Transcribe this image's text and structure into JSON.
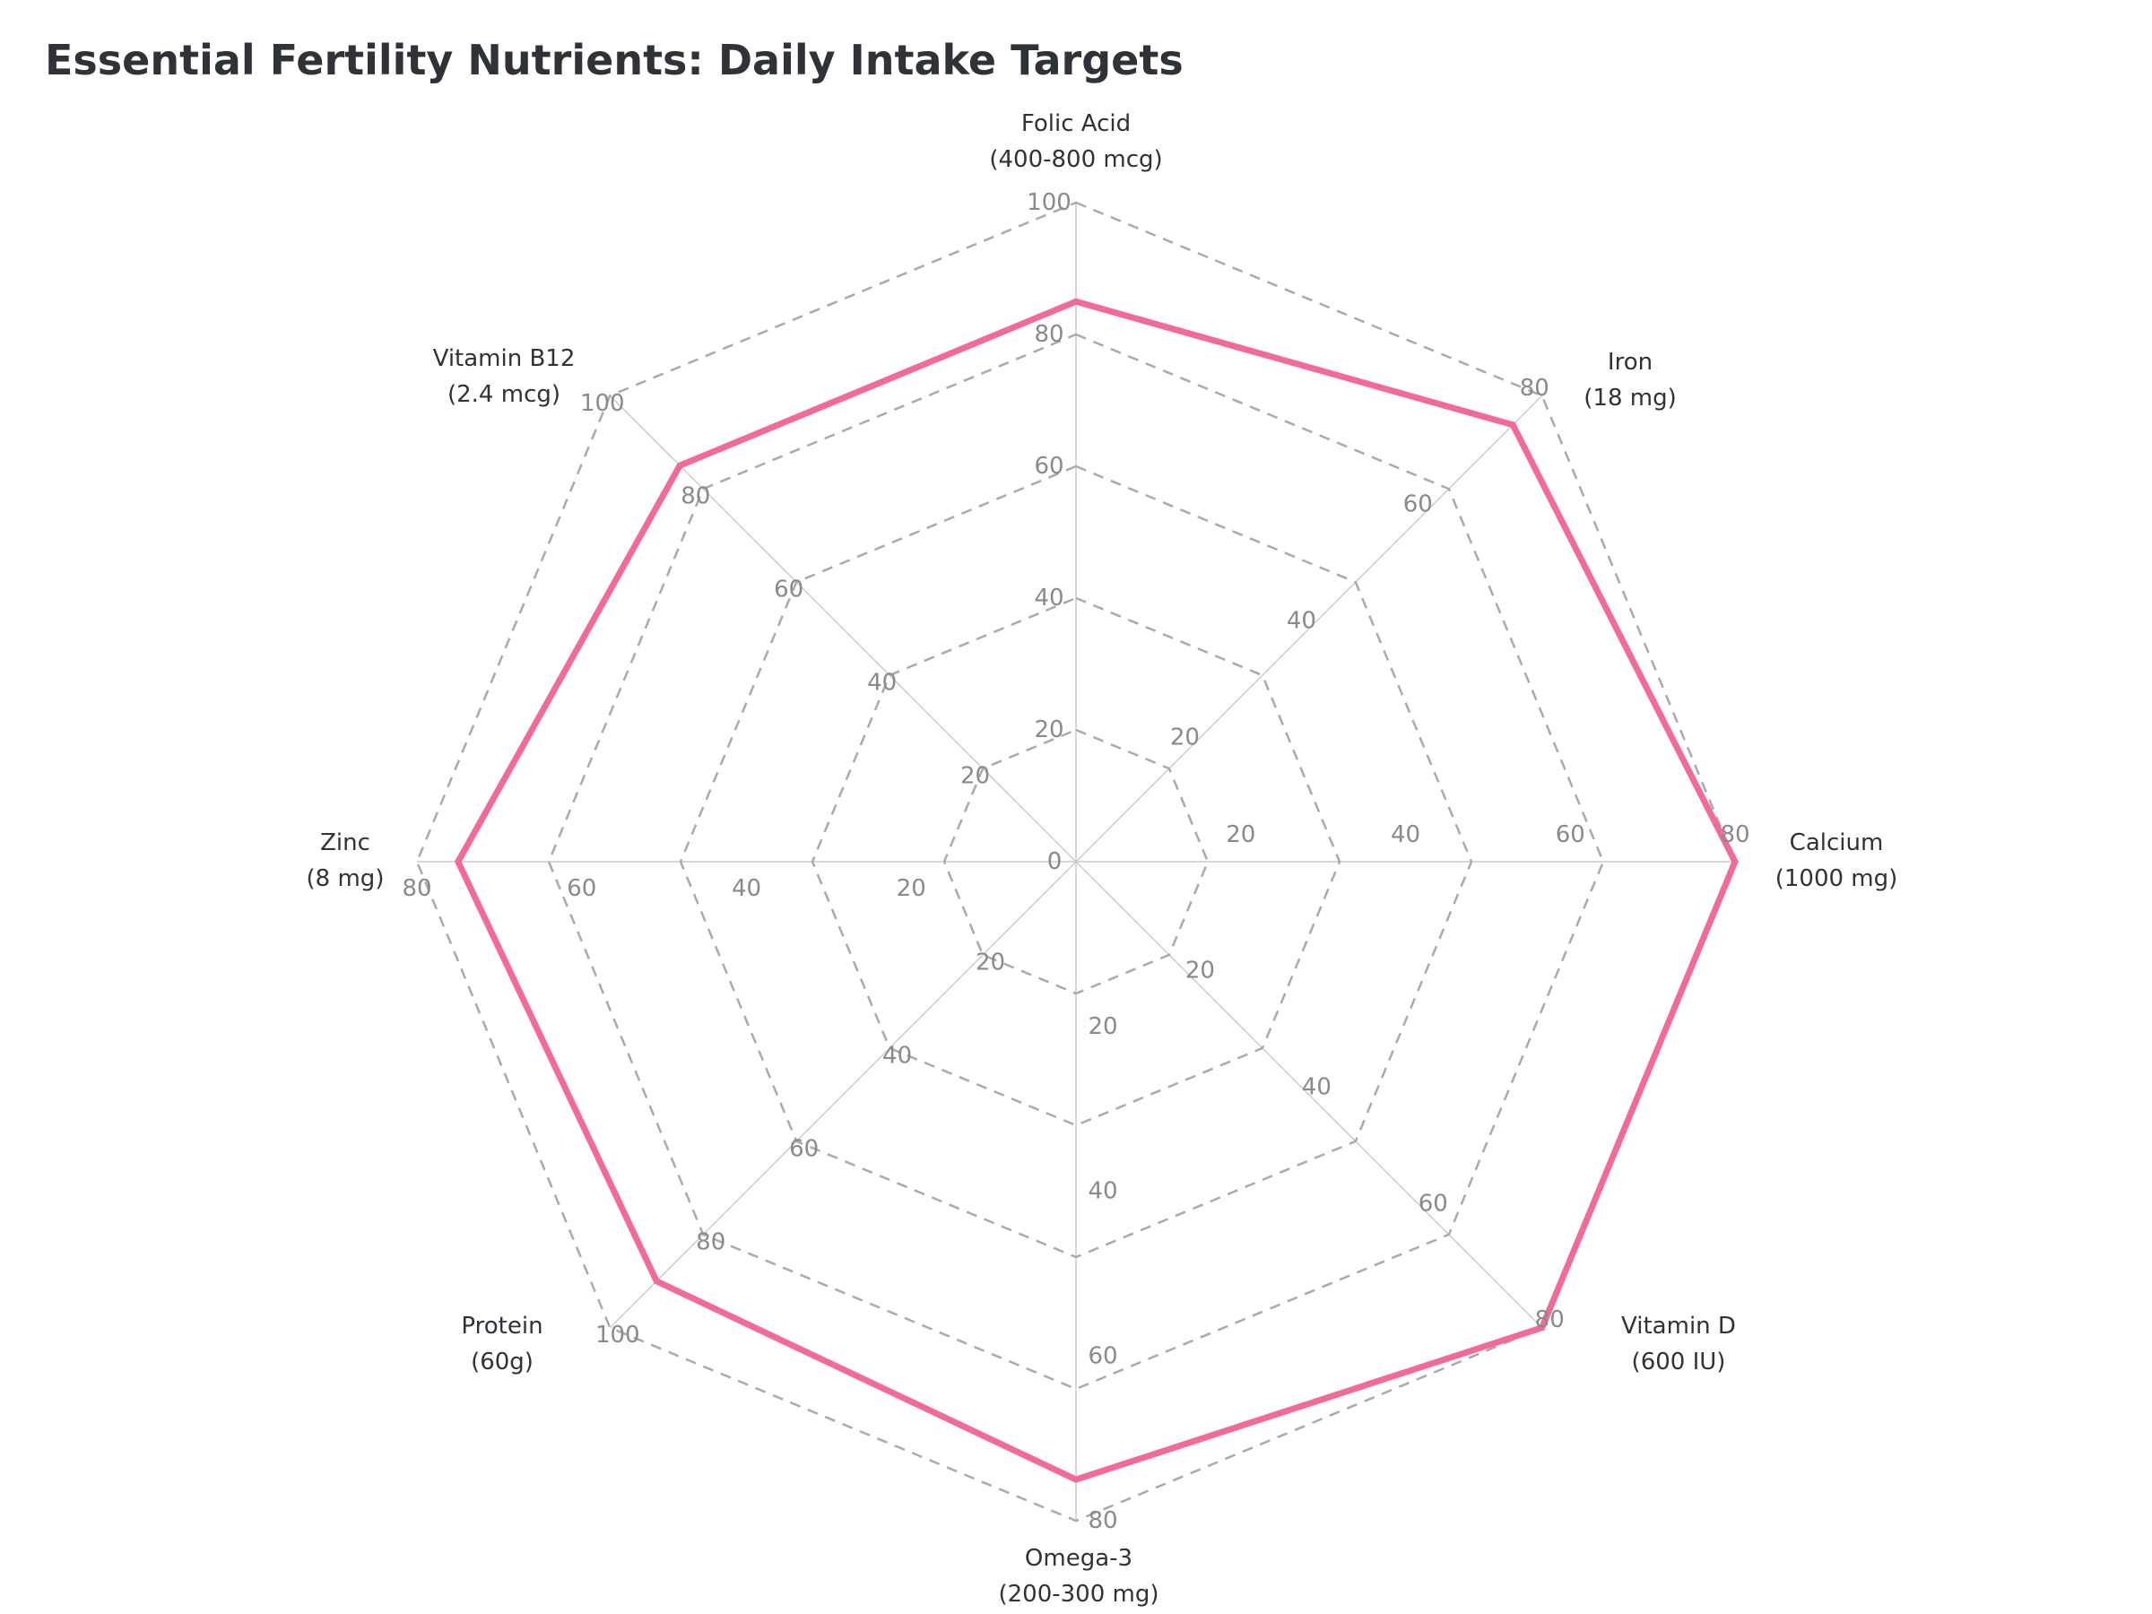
{
  "chart_data": {
    "type": "radar",
    "title": "Essential Fertility Nutrients: Daily Intake Targets",
    "grid": true,
    "line_color": "#f06b98",
    "axes": [
      {
        "name": "Folic Acid",
        "unit": "(400-800 mcg)",
        "range": [
          0,
          100
        ],
        "ticks": [
          20,
          40,
          60,
          80,
          100
        ],
        "value": 85
      },
      {
        "name": "Iron",
        "unit": "(18 mg)",
        "range": [
          0,
          80
        ],
        "ticks": [
          20,
          40,
          60,
          80
        ],
        "value": 75
      },
      {
        "name": "Calcium",
        "unit": "(1000 mg)",
        "range": [
          0,
          80
        ],
        "ticks": [
          20,
          40,
          60,
          80
        ],
        "value": 80
      },
      {
        "name": "Vitamin D",
        "unit": "(600 IU)",
        "range": [
          0,
          80
        ],
        "ticks": [
          20,
          40,
          60,
          80
        ],
        "value": 80
      },
      {
        "name": "Omega-3",
        "unit": "(200-300 mg)",
        "range": [
          0,
          80
        ],
        "ticks": [
          20,
          40,
          60,
          80
        ],
        "value": 75
      },
      {
        "name": "Protein",
        "unit": "(60g)",
        "range": [
          0,
          100
        ],
        "ticks": [
          20,
          40,
          60,
          80,
          100
        ],
        "value": 90
      },
      {
        "name": "Zinc",
        "unit": "(8 mg)",
        "range": [
          0,
          80
        ],
        "ticks": [
          20,
          40,
          60,
          80
        ],
        "value": 75
      },
      {
        "name": "Vitamin B12",
        "unit": "(2.4 mcg)",
        "range": [
          0,
          100
        ],
        "ticks": [
          20,
          40,
          60,
          80,
          100
        ],
        "value": 85
      }
    ],
    "center_label": "0"
  }
}
